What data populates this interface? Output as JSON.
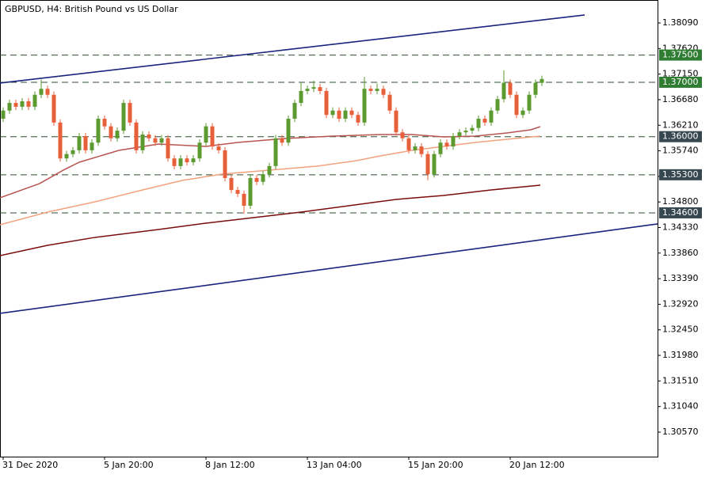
{
  "chart_data": {
    "type": "candlestick",
    "title": "GBPUSD, H4:  British Pound vs US Dollar",
    "categories": [
      "31 Dec 2020",
      null,
      null,
      null,
      null,
      null,
      null,
      null,
      null,
      null,
      null,
      null,
      null,
      null,
      null,
      null,
      "5 Jan 20:00",
      null,
      null,
      null,
      null,
      null,
      null,
      null,
      null,
      null,
      null,
      null,
      null,
      null,
      null,
      null,
      "8 Jan 12:00",
      null,
      null,
      null,
      null,
      null,
      null,
      null,
      null,
      null,
      null,
      null,
      null,
      null,
      null,
      null,
      "13 Jan 04:00",
      null,
      null,
      null,
      null,
      null,
      null,
      null,
      null,
      null,
      null,
      null,
      null,
      null,
      null,
      null,
      "15 Jan 20:00",
      null,
      null,
      null,
      null,
      null,
      null,
      null,
      null,
      null,
      null,
      null,
      null,
      null,
      null,
      null,
      "20 Jan 12:00",
      null,
      null,
      null,
      null,
      null
    ],
    "open": [
      1.3633,
      1.3648,
      1.3662,
      1.3655,
      1.3665,
      1.3655,
      1.3677,
      1.3688,
      1.3677,
      1.3626,
      1.356,
      1.3568,
      1.3575,
      1.3601,
      1.3575,
      1.3589,
      1.3633,
      1.3619,
      1.3597,
      1.3611,
      1.3662,
      1.3626,
      1.3575,
      1.3604,
      1.3597,
      1.3589,
      1.3597,
      1.356,
      1.3546,
      1.356,
      1.3553,
      1.356,
      1.3589,
      1.3619,
      1.3582,
      1.3575,
      1.3524,
      1.3502,
      1.3495,
      1.3473,
      1.3524,
      1.3517,
      1.3531,
      1.3546,
      1.3597,
      1.3589,
      1.3633,
      1.3662,
      1.3684,
      1.3688,
      1.3691,
      1.3684,
      1.364,
      1.3648,
      1.3633,
      1.3648,
      1.364,
      1.3626,
      1.3688,
      1.3684,
      1.3688,
      1.3677,
      1.3648,
      1.3608,
      1.3597,
      1.3575,
      1.3582,
      1.3568,
      1.3531,
      1.3568,
      1.3589,
      1.3582,
      1.3601,
      1.3608,
      1.3611,
      1.3616,
      1.3633,
      1.3626,
      1.3648,
      1.3669,
      1.3699,
      1.3677,
      1.364,
      1.3648,
      1.3677,
      1.3699
    ],
    "high": [
      1.3654,
      1.3668,
      1.3668,
      1.3671,
      1.3671,
      1.3683,
      1.3705,
      1.3694,
      1.3683,
      1.3632,
      1.3574,
      1.3581,
      1.3607,
      1.3607,
      1.3595,
      1.3639,
      1.3639,
      1.3625,
      1.3617,
      1.3668,
      1.3668,
      1.3632,
      1.361,
      1.361,
      1.3603,
      1.3603,
      1.3603,
      1.3566,
      1.3566,
      1.3566,
      1.3566,
      1.3595,
      1.3625,
      1.3625,
      1.3588,
      1.3581,
      1.353,
      1.3508,
      1.3501,
      1.353,
      1.353,
      1.3537,
      1.3552,
      1.3603,
      1.3603,
      1.3639,
      1.3668,
      1.37,
      1.3694,
      1.3703,
      1.3697,
      1.369,
      1.3654,
      1.3654,
      1.3654,
      1.3654,
      1.3646,
      1.371,
      1.3694,
      1.3698,
      1.3694,
      1.3683,
      1.3654,
      1.3614,
      1.3603,
      1.3588,
      1.3588,
      1.3574,
      1.3574,
      1.3595,
      1.3595,
      1.3607,
      1.3614,
      1.3617,
      1.3622,
      1.3639,
      1.3639,
      1.3654,
      1.3675,
      1.3722,
      1.3705,
      1.3683,
      1.3654,
      1.3683,
      1.3705,
      1.3712
    ],
    "low": [
      1.3627,
      1.3642,
      1.3649,
      1.3649,
      1.3649,
      1.3649,
      1.3671,
      1.3671,
      1.362,
      1.3554,
      1.3554,
      1.3562,
      1.3569,
      1.3569,
      1.3569,
      1.3583,
      1.3613,
      1.3591,
      1.3591,
      1.3605,
      1.362,
      1.3569,
      1.3569,
      1.3591,
      1.3583,
      1.3583,
      1.3554,
      1.354,
      1.354,
      1.3547,
      1.3547,
      1.3554,
      1.3583,
      1.3576,
      1.3569,
      1.3518,
      1.3496,
      1.3489,
      1.3458,
      1.3467,
      1.3511,
      1.3511,
      1.3525,
      1.354,
      1.3583,
      1.3583,
      1.3627,
      1.3656,
      1.3678,
      1.3682,
      1.3678,
      1.3634,
      1.3634,
      1.3627,
      1.3627,
      1.3634,
      1.362,
      1.362,
      1.3678,
      1.3678,
      1.3671,
      1.3642,
      1.3602,
      1.3591,
      1.3569,
      1.3569,
      1.3562,
      1.352,
      1.3525,
      1.3562,
      1.3576,
      1.3576,
      1.3595,
      1.3602,
      1.3605,
      1.361,
      1.362,
      1.362,
      1.3642,
      1.3663,
      1.3671,
      1.3634,
      1.3634,
      1.3642,
      1.3671,
      1.3693
    ],
    "close": [
      1.3648,
      1.3662,
      1.3655,
      1.3665,
      1.3655,
      1.3677,
      1.3688,
      1.3677,
      1.3626,
      1.356,
      1.3568,
      1.3575,
      1.3601,
      1.3575,
      1.3589,
      1.3633,
      1.3619,
      1.3597,
      1.3611,
      1.3662,
      1.3626,
      1.3575,
      1.3604,
      1.3597,
      1.3589,
      1.3597,
      1.356,
      1.3546,
      1.356,
      1.3553,
      1.356,
      1.3589,
      1.3619,
      1.3582,
      1.3575,
      1.3524,
      1.3502,
      1.3495,
      1.3473,
      1.3524,
      1.3517,
      1.3531,
      1.3546,
      1.3597,
      1.3589,
      1.3633,
      1.3662,
      1.3684,
      1.3688,
      1.3691,
      1.3684,
      1.364,
      1.3648,
      1.3633,
      1.3648,
      1.364,
      1.3626,
      1.3688,
      1.3684,
      1.3688,
      1.3677,
      1.3648,
      1.3608,
      1.3597,
      1.3575,
      1.3582,
      1.3568,
      1.3531,
      1.3568,
      1.3589,
      1.3582,
      1.3601,
      1.3608,
      1.3611,
      1.3616,
      1.3633,
      1.3626,
      1.3648,
      1.3669,
      1.3699,
      1.3677,
      1.364,
      1.3648,
      1.3677,
      1.3699,
      1.3706
    ],
    "up_color": "#5b9a2f",
    "down_color": "#e8603b",
    "xlim": [
      -0.5,
      103.25
    ],
    "ylim": [
      1.30119,
      1.38512
    ],
    "yticks": [
      {
        "value": 1.3809,
        "label": "1.38090"
      },
      {
        "value": 1.3762,
        "label": "1.37620"
      },
      {
        "value": 1.3715,
        "label": "1.37150"
      },
      {
        "value": 1.3668,
        "label": "1.36680"
      },
      {
        "value": 1.3621,
        "label": "1.36210"
      },
      {
        "value": 1.3574,
        "label": "1.35740"
      },
      {
        "value": 1.3527,
        "label": "1.35270"
      },
      {
        "value": 1.348,
        "label": "1.34800"
      },
      {
        "value": 1.3433,
        "label": "1.34330"
      },
      {
        "value": 1.3386,
        "label": "1.33860"
      },
      {
        "value": 1.3339,
        "label": "1.33390"
      },
      {
        "value": 1.3292,
        "label": "1.32920"
      },
      {
        "value": 1.3245,
        "label": "1.32450"
      },
      {
        "value": 1.3198,
        "label": "1.31980"
      },
      {
        "value": 1.3151,
        "label": "1.31510"
      },
      {
        "value": 1.3104,
        "label": "1.31040"
      },
      {
        "value": 1.3057,
        "label": "1.30570"
      }
    ],
    "levels": [
      {
        "value": 1.375,
        "label": "1.37500",
        "color": "#2e7d32"
      },
      {
        "value": 1.37,
        "label": "1.37000",
        "color": "#2e7d32"
      },
      {
        "value": 1.36,
        "label": "1.36000",
        "color": "#37474f"
      },
      {
        "value": 1.353,
        "label": "1.35300",
        "color": "#37474f"
      },
      {
        "value": 1.346,
        "label": "1.34600",
        "color": "#37474f"
      }
    ],
    "moving_averages": [
      {
        "color": "#b85450",
        "x": [
          -0.5,
          5.75,
          9.5,
          12,
          18.25,
          24.5,
          32,
          37,
          44.5,
          52,
          59.5,
          64.5,
          69.5,
          74.5,
          79.5,
          83.25,
          84.75
        ],
        "values": [
          1.34876,
          1.35138,
          1.35385,
          1.3553,
          1.35748,
          1.35865,
          1.35821,
          1.35894,
          1.35967,
          1.3601,
          1.36039,
          1.36039,
          1.35996,
          1.3601,
          1.36068,
          1.36127,
          1.36185
        ]
      },
      {
        "color": "#f2a27e",
        "x": [
          -0.5,
          7,
          14.5,
          22,
          28.25,
          34.5,
          42,
          49.5,
          55.75,
          59.5,
          64.5,
          69.5,
          74.5,
          80.75,
          84.75
        ],
        "values": [
          1.34381,
          1.34614,
          1.34803,
          1.35021,
          1.35196,
          1.35312,
          1.35385,
          1.35458,
          1.35559,
          1.35647,
          1.35748,
          1.35821,
          1.35894,
          1.35967,
          1.3601
        ]
      },
      {
        "color": "#7a0c0c",
        "x": [
          -0.5,
          7,
          14.5,
          24.5,
          32,
          39.5,
          47,
          54.5,
          62,
          69.5,
          77,
          84.75
        ],
        "values": [
          1.33814,
          1.34003,
          1.34149,
          1.34294,
          1.3441,
          1.34512,
          1.34614,
          1.3473,
          1.34847,
          1.34919,
          1.35021,
          1.35109
        ]
      }
    ],
    "trendlines": [
      {
        "color": "#1a237e",
        "x": [
          -0.5,
          91.75
        ],
        "values": [
          1.36985,
          1.38236
        ]
      },
      {
        "color": "#1a237e",
        "x": [
          -0.5,
          103.25
        ],
        "values": [
          1.32752,
          1.34396
        ]
      }
    ]
  }
}
